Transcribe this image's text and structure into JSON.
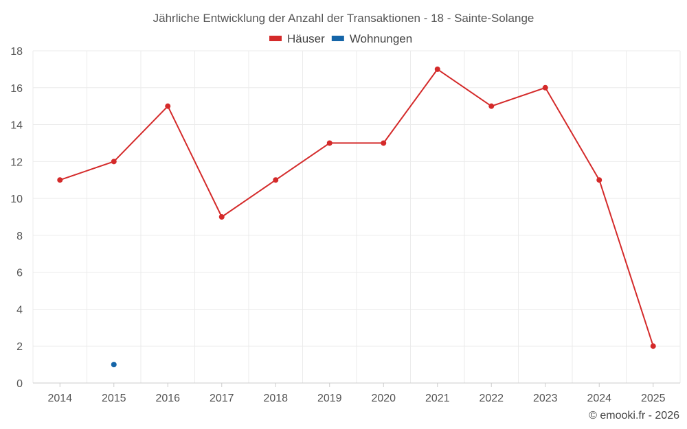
{
  "chart_data": {
    "type": "line",
    "title": "Jährliche Entwicklung der Anzahl der Transaktionen - 18 - Sainte-Solange",
    "categories": [
      "2014",
      "2015",
      "2016",
      "2017",
      "2018",
      "2019",
      "2020",
      "2021",
      "2022",
      "2023",
      "2024",
      "2025"
    ],
    "series": [
      {
        "name": "Häuser",
        "color": "#d42a2a",
        "values": [
          11,
          12,
          15,
          9,
          11,
          13,
          13,
          17,
          15,
          16,
          11,
          2
        ]
      },
      {
        "name": "Wohnungen",
        "color": "#1565a8",
        "values": [
          null,
          1,
          null,
          null,
          null,
          null,
          null,
          null,
          null,
          null,
          null,
          null
        ]
      }
    ],
    "ylim": [
      0,
      18
    ],
    "yticks": [
      0,
      2,
      4,
      6,
      8,
      10,
      12,
      14,
      16,
      18
    ],
    "grid": true,
    "legend": "top-center",
    "xlabel": "",
    "ylabel": ""
  },
  "credit": "© emooki.fr - 2026"
}
